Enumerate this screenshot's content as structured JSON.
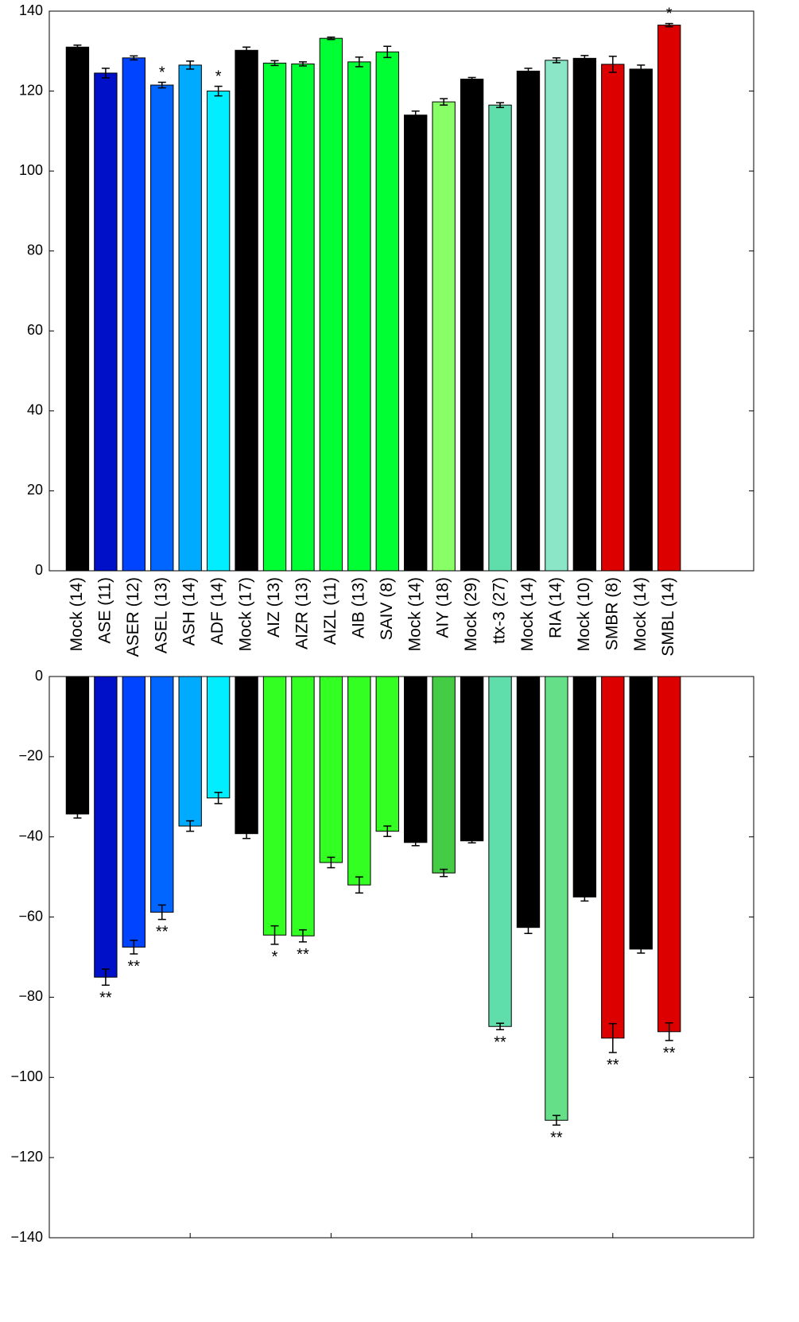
{
  "chart_data": [
    {
      "type": "bar",
      "categories": [
        "Mock (14)",
        "ASE (11)",
        "ASER (12)",
        "ASEL (13)",
        "ASH (14)",
        "ADF (14)",
        "Mock (17)",
        "AIZ (13)",
        "AIZR (13)",
        "AIZL (11)",
        "AIB (13)",
        "SAIV (8)",
        "Mock (14)",
        "AIY (18)",
        "Mock (29)",
        "ttx-3 (27)",
        "Mock (14)",
        "RIA (14)",
        "Mock (10)",
        "SMBR (8)",
        "Mock (14)",
        "SMBL (14)"
      ],
      "values": [
        131,
        124.5,
        128.3,
        121.5,
        126.5,
        120,
        130.2,
        127,
        126.8,
        133.2,
        127.3,
        129.8,
        114,
        117.3,
        123,
        116.5,
        125,
        127.7,
        128.2,
        126.7,
        125.5,
        136.5
      ],
      "errors": [
        0.5,
        1.2,
        0.5,
        0.7,
        1,
        1.2,
        0.8,
        0.6,
        0.5,
        0.3,
        1.2,
        1.4,
        1,
        0.8,
        0.4,
        0.6,
        0.7,
        0.6,
        0.7,
        2,
        1,
        0.4
      ],
      "colors": [
        "#000000",
        "#0010c8",
        "#0044ff",
        "#0066ff",
        "#00aaff",
        "#00eeff",
        "#000000",
        "#00ff33",
        "#00ff33",
        "#00ff33",
        "#00ff33",
        "#00ff33",
        "#000000",
        "#88ff66",
        "#000000",
        "#5fddaa",
        "#000000",
        "#8ae6c6",
        "#000000",
        "#dd0000",
        "#000000",
        "#dd0000"
      ],
      "annotations": [
        null,
        null,
        null,
        "*",
        null,
        "*",
        null,
        null,
        null,
        null,
        null,
        null,
        null,
        null,
        null,
        null,
        null,
        null,
        null,
        null,
        null,
        "*"
      ],
      "xlim": [
        0,
        25
      ],
      "ylim": [
        0,
        140
      ],
      "yticks": [
        0,
        20,
        40,
        60,
        80,
        100,
        120,
        140
      ]
    },
    {
      "type": "bar",
      "values": [
        -34.3,
        -75,
        -67.5,
        -58.8,
        -37.3,
        -30.3,
        -39.2,
        -64.5,
        -64.7,
        -46.4,
        -52,
        -38.6,
        -41.4,
        -49,
        -41,
        -87.3,
        -62.6,
        -110.7,
        -55,
        -90.2,
        -68,
        -88.6
      ],
      "errors": [
        1,
        2,
        1.7,
        1.8,
        1.3,
        1.4,
        1.2,
        2.3,
        1.5,
        1.3,
        2,
        1.3,
        0.8,
        0.9,
        0.5,
        0.8,
        1.5,
        1.2,
        1,
        3.6,
        1,
        2.2
      ],
      "colors": [
        "#000000",
        "#0010c8",
        "#0044ff",
        "#0066ff",
        "#00aaff",
        "#00eeff",
        "#000000",
        "#33ff22",
        "#33ff22",
        "#33ff22",
        "#33ff22",
        "#33ff22",
        "#000000",
        "#44cc44",
        "#000000",
        "#5fddaa",
        "#000000",
        "#66e088",
        "#000000",
        "#dd0000",
        "#000000",
        "#dd0000"
      ],
      "annotations": [
        null,
        "**",
        "**",
        "**",
        null,
        null,
        null,
        "*",
        "**",
        null,
        null,
        null,
        null,
        null,
        null,
        "**",
        null,
        "**",
        null,
        "**",
        null,
        "**"
      ],
      "xlim": [
        0,
        25
      ],
      "xticks": [
        5,
        10,
        15,
        20
      ],
      "ylim": [
        -140,
        0
      ],
      "yticks": [
        {
          "value": -140,
          "label": "−140"
        },
        {
          "value": -120,
          "label": "−120"
        },
        {
          "value": -100,
          "label": "−100"
        },
        {
          "value": -80,
          "label": "−80"
        },
        {
          "value": -60,
          "label": "−60"
        },
        {
          "value": -40,
          "label": "−40"
        },
        {
          "value": -20,
          "label": "−20"
        },
        0
      ]
    }
  ]
}
